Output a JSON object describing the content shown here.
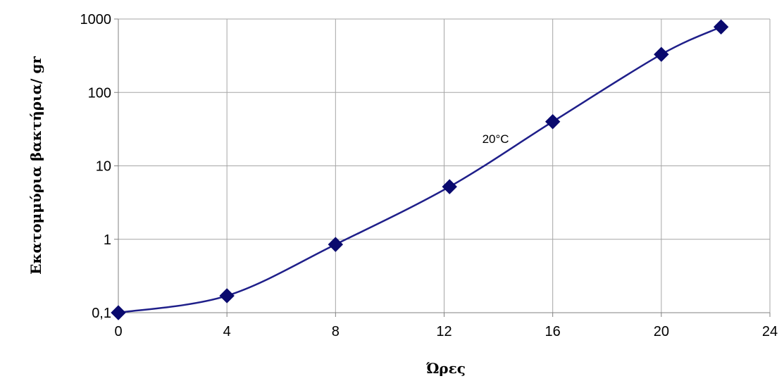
{
  "chart_data": {
    "type": "line",
    "title": "",
    "xlabel": "Ώρες",
    "ylabel": "Εκατομμύρια βακτήρια/ gr",
    "xlim": [
      0,
      24
    ],
    "ylim": [
      0.1,
      1000
    ],
    "yscale": "log",
    "x_ticks": [
      0,
      4,
      8,
      12,
      16,
      20,
      24
    ],
    "x_tick_labels": [
      "0",
      "4",
      "8",
      "12",
      "16",
      "20",
      "24"
    ],
    "y_ticks": [
      0.1,
      1,
      10,
      100,
      1000
    ],
    "y_tick_labels": [
      "0,1",
      "1",
      "10",
      "100",
      "1000"
    ],
    "grid": true,
    "legend": "none",
    "series": [
      {
        "color": "#0a0a6e",
        "marker": "diamond",
        "x": [
          0,
          4,
          8,
          12.2,
          16,
          20,
          22.2
        ],
        "y": [
          0.1,
          0.17,
          0.85,
          5.2,
          40,
          330,
          780
        ]
      }
    ],
    "annotations": [
      {
        "text": "20°C",
        "x": 14,
        "y": 18
      }
    ]
  }
}
